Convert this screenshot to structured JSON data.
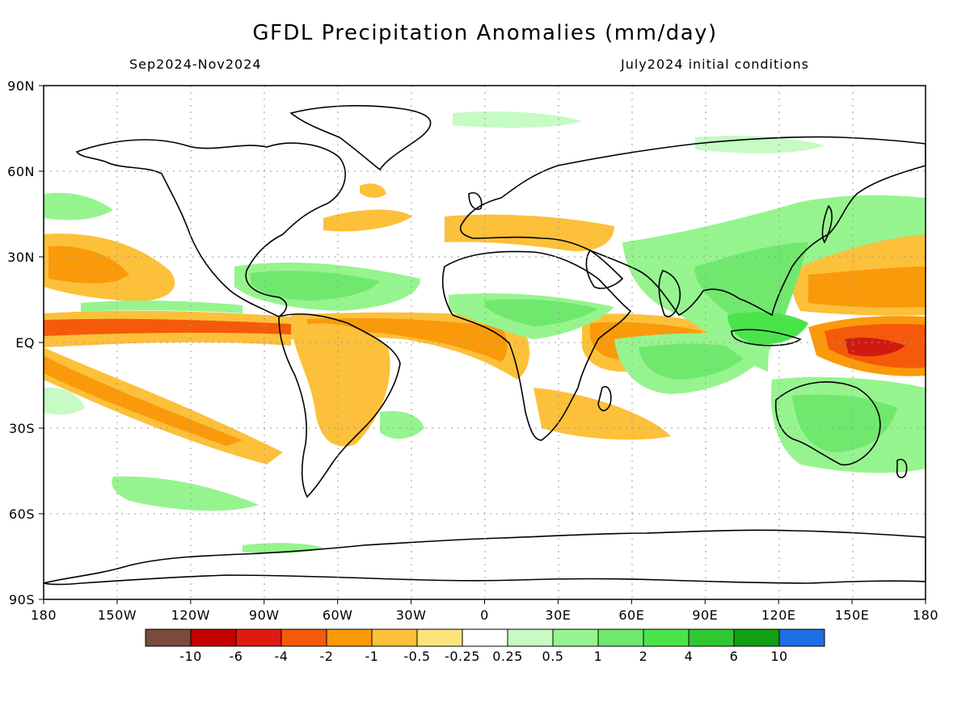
{
  "title": "GFDL Precipitation Anomalies (mm/day)",
  "period": "Sep2024-Nov2024",
  "initial_conditions": "July2024 initial conditions",
  "map": {
    "lon_ticks": [
      "180",
      "150W",
      "120W",
      "90W",
      "60W",
      "30W",
      "0",
      "30E",
      "60E",
      "90E",
      "120E",
      "150E",
      "180"
    ],
    "lat_ticks": [
      "90N",
      "60N",
      "30N",
      "EQ",
      "30S",
      "60S",
      "90S"
    ],
    "lon_range": [
      -180,
      180
    ],
    "lat_range": [
      -90,
      90
    ],
    "grid": "dotted",
    "projection": "cylindrical equidistant"
  },
  "colorbar": {
    "colors": [
      "#7a4a3a",
      "#c40000",
      "#e01a10",
      "#f55a0a",
      "#fa9a0a",
      "#fcc03a",
      "#fde47a",
      "#ffffff",
      "#c6fbc4",
      "#96f48f",
      "#70e86e",
      "#4ae44a",
      "#30c830",
      "#10a010",
      "#1e6ee8"
    ],
    "labels": [
      "-10",
      "-6",
      "-4",
      "-2",
      "-1",
      "-0.5",
      "-0.25",
      "0.25",
      "0.5",
      "1",
      "2",
      "4",
      "6",
      "10"
    ]
  },
  "fill_colors": {
    "dry_weak": "#fde47a",
    "dry_mod": "#fcc03a",
    "dry_strong": "#fa9a0a",
    "dry_vstrong": "#f55a0a",
    "dry_extreme": "#d01a10",
    "wet_weak": "#c6fbc4",
    "wet_mod": "#96f48f",
    "wet_strong": "#70e86e",
    "wet_vstrong": "#4ae44a"
  }
}
